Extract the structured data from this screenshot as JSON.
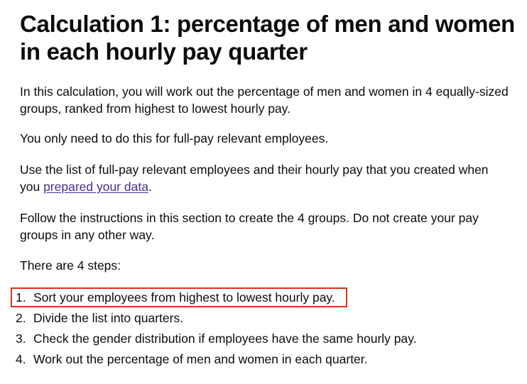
{
  "title": "Calculation 1: percentage of men and women in each hourly pay quarter",
  "intro": "In this calculation, you will work out the percentage of men and women in 4 equally-sized groups, ranked from highest to lowest hourly pay.",
  "full_pay_note": "You only need to do this for full-pay relevant employees.",
  "use_list": {
    "before": "Use the list of full-pay relevant employees and their hourly pay that you created when you ",
    "link": "prepared your data",
    "after": "."
  },
  "follow": "Follow the instructions in this section to create the 4 groups. Do not create your pay groups in any other way.",
  "steps_intro": "There are 4 steps:",
  "steps": [
    {
      "num": "1.",
      "text": "Sort your employees from highest to lowest hourly pay."
    },
    {
      "num": "2.",
      "text": "Divide the list into quarters."
    },
    {
      "num": "3.",
      "text": "Check the gender distribution if employees have the same hourly pay."
    },
    {
      "num": "4.",
      "text": "Work out the percentage of men and women in each quarter."
    }
  ]
}
